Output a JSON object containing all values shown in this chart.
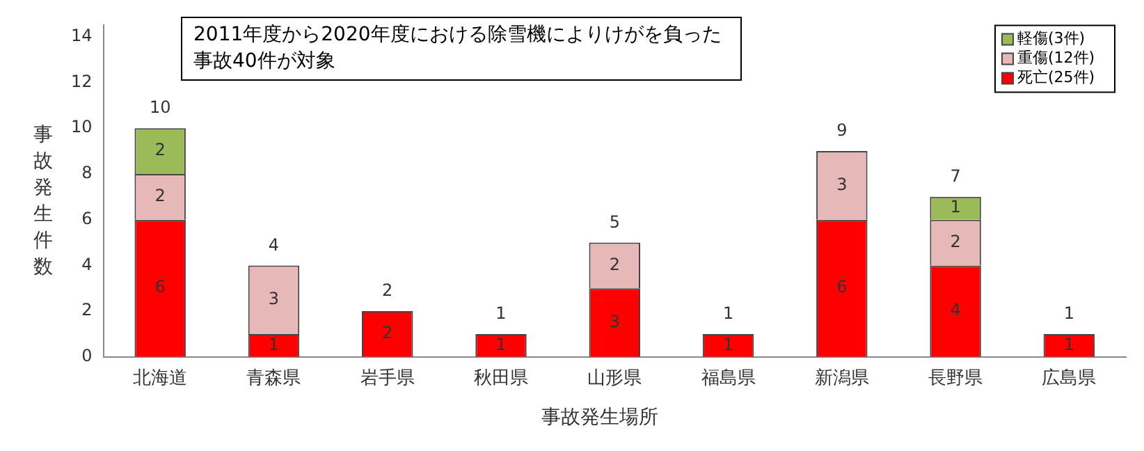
{
  "chart_data": {
    "type": "bar",
    "stacked": true,
    "xlabel": "事故発生場所",
    "ylabel": "事故発生件数",
    "categories": [
      "北海道",
      "青森県",
      "岩手県",
      "秋田県",
      "山形県",
      "福島県",
      "新潟県",
      "長野県",
      "広島県"
    ],
    "series": [
      {
        "name": "死亡(25件)",
        "color": "#ff0000",
        "values": [
          6,
          1,
          2,
          1,
          3,
          1,
          6,
          4,
          1
        ]
      },
      {
        "name": "重傷(12件)",
        "color": "#e6b9b8",
        "values": [
          2,
          3,
          null,
          null,
          2,
          null,
          3,
          2,
          null
        ]
      },
      {
        "name": "軽傷(3件)",
        "color": "#9bbb59",
        "values": [
          2,
          null,
          null,
          null,
          null,
          null,
          null,
          1,
          null
        ]
      }
    ],
    "totals": [
      "10",
      "4",
      "2",
      "1",
      "5",
      "1",
      "9",
      "7",
      "1"
    ],
    "data_labels": true,
    "ylim": [
      0,
      14.5
    ],
    "yticks": [
      0,
      2,
      4,
      6,
      8,
      10,
      12,
      14
    ],
    "grid": false,
    "legend": "top right",
    "annotations": [
      "2011年度から2020年度における除雪機によりけがを負った事故40件が対象"
    ]
  }
}
